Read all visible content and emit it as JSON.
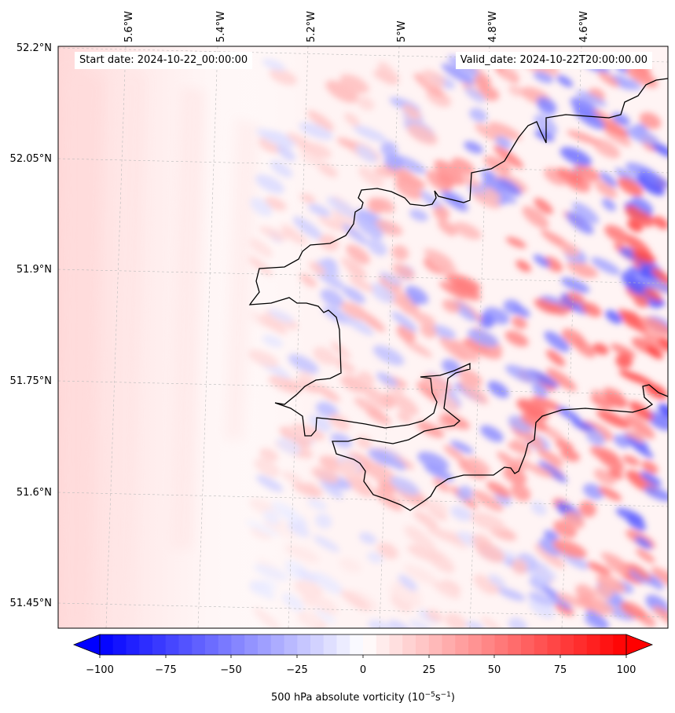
{
  "header": {
    "start": "Start date: 2024-10-22_00:00:00",
    "valid": "Valid_date: 2024-10-22T20:00:00.00"
  },
  "map": {
    "lat_labels": [
      "52.2°N",
      "52.05°N",
      "51.9°N",
      "51.75°N",
      "51.6°N",
      "51.45°N"
    ],
    "lon_labels": [
      "5.6°W",
      "5.4°W",
      "5.2°W",
      "5°W",
      "4.8°W",
      "4.6°W"
    ],
    "gridlines": "dashed-light-gray",
    "coastline_color": "#000000"
  },
  "colorbar": {
    "ticks": [
      "−100",
      "−75",
      "−50",
      "−25",
      "0",
      "25",
      "50",
      "75",
      "100"
    ],
    "label_main": "500 hPa absolute vorticity (10",
    "label_exp1": "−5",
    "label_mid": "s",
    "label_exp2": "−1",
    "label_end": ")",
    "colormap": "bwr",
    "min_color": "#0000ff",
    "zero_color": "#ffffff",
    "max_color": "#ff0000",
    "extend": "both"
  }
}
